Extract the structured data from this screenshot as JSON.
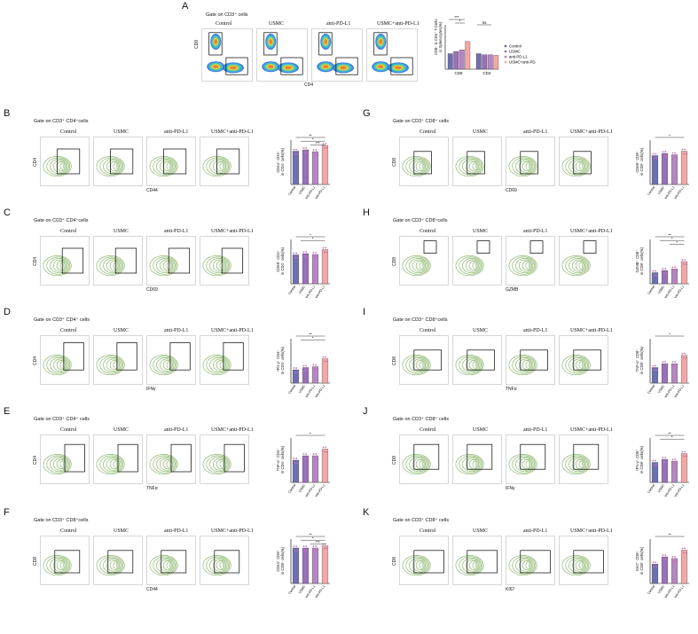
{
  "colors": {
    "control": "#6f6fb0",
    "usmc": "#9a70b8",
    "anti_pd_l1": "#b686c4",
    "combo": "#f2a8a8",
    "contour": "#8fb872",
    "gate_line": "#000000",
    "dot": "#c46fb7"
  },
  "panel_A": {
    "letter": "A",
    "gate": "Gate on CD3⁺ cells",
    "conditions": [
      "Control",
      "USMC",
      "anti-PD-L1",
      "USMC+anti-PD-L1"
    ],
    "y_axis": "CD8",
    "x_axis": "CD4",
    "chart_data": {
      "type": "bar",
      "categories": [
        "CD8",
        "CD4"
      ],
      "series": [
        {
          "name": "Control",
          "values": [
            28,
            28
          ]
        },
        {
          "name": "USMC",
          "values": [
            32,
            26
          ]
        },
        {
          "name": "anti-PD-L1",
          "values": [
            35,
            26
          ]
        },
        {
          "name": "USMC+anti-PD-L1",
          "values": [
            50,
            25
          ]
        }
      ],
      "ylabel": "CD8⁺ & CD4⁺ T-Cells\nin Splenocytes(%)",
      "ylim": [
        0,
        80
      ],
      "significance": [
        "***",
        "*",
        "ns"
      ],
      "legend_position": "right"
    }
  },
  "panels": [
    {
      "letter": "B",
      "gate": "Gate on CD3⁺ CD4⁺cells",
      "y_axis": "CD4",
      "x_axis": "CD44",
      "conditions": [
        "Control",
        "USMC",
        "anti-PD-L1",
        "USMC+anti-PD-L1"
      ],
      "chart_data": {
        "type": "bar",
        "categories": [
          "Control",
          "USMC",
          "anti-PD-L1",
          "USMC+anti-PD-L1"
        ],
        "values": [
          75,
          78,
          74,
          88
        ],
        "ylabel": "CD44⁺ CD4⁺\nin CD4⁺ cells(%)",
        "ylim": [
          0,
          100
        ],
        "significance": [
          "**",
          "*",
          "***"
        ]
      }
    },
    {
      "letter": "C",
      "gate": "Gate on CD3⁺ CD4⁺cells",
      "y_axis": "CD4",
      "x_axis": "CD69",
      "conditions": [
        "Control",
        "USMC",
        "anti-PD-L1",
        "USMC+anti-PD-L1"
      ],
      "chart_data": {
        "type": "bar",
        "categories": [
          "Control",
          "USMC",
          "anti-PD-L1",
          "USMC+anti-PD-L1"
        ],
        "values": [
          65,
          68,
          66,
          77
        ],
        "ylabel": "CD69⁺ CD4⁺\nin CD4⁺ cells(%)",
        "ylim": [
          0,
          100
        ],
        "significance": [
          "*",
          "*"
        ]
      }
    },
    {
      "letter": "D",
      "gate": "Gate on CD3⁺ CD4⁺ cells",
      "y_axis": "CD4",
      "x_axis": "IFNγ",
      "conditions": [
        "Control",
        "USMC",
        "anti-PD-L1",
        "USMC+anti-PD-L1"
      ],
      "chart_data": {
        "type": "bar",
        "categories": [
          "Control",
          "USMC",
          "anti-PD-L1",
          "USMC+anti-PD-L1"
        ],
        "values": [
          30,
          35,
          37,
          55
        ],
        "ylabel": "IFN-γ⁺ CD4⁺\nin CD4⁺ cells(%)",
        "ylim": [
          0,
          100
        ],
        "significance": [
          "**",
          "*"
        ]
      }
    },
    {
      "letter": "E",
      "gate": "Gate on CD3⁺ CD4⁺ cells",
      "y_axis": "CD4",
      "x_axis": "TNFα",
      "conditions": [
        "Control",
        "USMC",
        "anti-PD-L1",
        "USMC+anti-PD-L1"
      ],
      "chart_data": {
        "type": "bar",
        "categories": [
          "Control",
          "USMC",
          "anti-PD-L1",
          "USMC+anti-PD-L1"
        ],
        "values": [
          40,
          48,
          48,
          60
        ],
        "ylabel": "TNF-α⁺ CD4⁺\nin CD4⁺ cells(%)",
        "ylim": [
          0,
          80
        ],
        "significance": [
          "*"
        ]
      }
    },
    {
      "letter": "F",
      "gate": "Gate on CD3⁺ CD8⁺cells",
      "y_axis": "CD8",
      "x_axis": "CD44",
      "conditions": [
        "Control",
        "USMC",
        "anti-PD-L1",
        "USMC+anti-PD-L1"
      ],
      "chart_data": {
        "type": "bar",
        "categories": [
          "Control",
          "USMC",
          "anti-PD-L1",
          "USMC+anti-PD-L1"
        ],
        "values": [
          80,
          80,
          80,
          85
        ],
        "ylabel": "CD44⁺ CD8⁺\nin CD8⁺ cells(%)",
        "ylim": [
          0,
          100
        ],
        "significance": [
          "**",
          "*",
          "***"
        ]
      }
    },
    {
      "letter": "G",
      "gate": "Gate on CD3⁺ CD8⁺ cells",
      "y_axis": "CD8",
      "x_axis": "CD69",
      "conditions": [
        "Control",
        "USMC",
        "anti-PD-L1",
        "USMC+anti-PD-L1"
      ],
      "chart_data": {
        "type": "bar",
        "categories": [
          "Control",
          "USMC",
          "anti-PD-L1",
          "USMC+anti-PD-L1"
        ],
        "values": [
          65,
          70,
          67,
          75
        ],
        "ylabel": "CD69⁺ CD8⁺\nin CD8⁺ cells(%)",
        "ylim": [
          0,
          100
        ],
        "significance": [
          "*"
        ]
      }
    },
    {
      "letter": "H",
      "gate": "Gate on CD3⁺ CD8⁺cells",
      "y_axis": "CD8",
      "x_axis": "GZMB",
      "conditions": [
        "Control",
        "USMC",
        "anti-PD-L1",
        "USMC+anti-PD-L1"
      ],
      "chart_data": {
        "type": "bar",
        "categories": [
          "Control",
          "USMC",
          "anti-PD-L1",
          "USMC+anti-PD-L1"
        ],
        "values": [
          15,
          18,
          20,
          30
        ],
        "ylabel": "GZMB⁺ CD8⁺\nin CD8⁺ cells(%)",
        "ylim": [
          0,
          60
        ],
        "significance": [
          "**",
          "*",
          "*"
        ]
      }
    },
    {
      "letter": "I",
      "gate": "Gate on CD3⁺ CD8⁺cells",
      "y_axis": "CD8",
      "x_axis": "TNFα",
      "conditions": [
        "Control",
        "USMC",
        "anti-PD-L1",
        "USMC+anti-PD-L1"
      ],
      "chart_data": {
        "type": "bar",
        "categories": [
          "Control",
          "USMC",
          "anti-PD-L1",
          "USMC+anti-PD-L1"
        ],
        "values": [
          28,
          35,
          35,
          50
        ],
        "ylabel": "TNF-α⁺ CD8⁺\nin CD8⁺ cells(%)",
        "ylim": [
          0,
          80
        ],
        "significance": [
          "*"
        ]
      }
    },
    {
      "letter": "J",
      "gate": "Gate on CD3⁺ CD8⁺ cells",
      "y_axis": "CD8",
      "x_axis": "IFNγ",
      "conditions": [
        "Control",
        "USMC",
        "anti-PD-L1",
        "USMC+anti-PD-L1"
      ],
      "chart_data": {
        "type": "bar",
        "categories": [
          "Control",
          "USMC",
          "anti-PD-L1",
          "USMC+anti-PD-L1"
        ],
        "values": [
          45,
          52,
          48,
          65
        ],
        "ylabel": "IFN-γ⁺ CD8⁺\nin CD8⁺ cells(%)",
        "ylim": [
          0,
          100
        ],
        "significance": [
          "**",
          "*"
        ]
      }
    },
    {
      "letter": "K",
      "gate": "Gate on CD3⁺ CD8⁺ cells",
      "y_axis": "CD8",
      "x_axis": "KI67",
      "conditions": [
        "Control",
        "USMC",
        "anti-PD-L1",
        "USMC+anti-PD-L1"
      ],
      "chart_data": {
        "type": "bar",
        "categories": [
          "Control",
          "USMC",
          "anti-PD-L1",
          "USMC+anti-PD-L1"
        ],
        "values": [
          35,
          48,
          45,
          60
        ],
        "ylabel": "KI67⁺ CD8⁺\nin CD8⁺ cells(%)",
        "ylim": [
          0,
          80
        ],
        "significance": [
          "**"
        ]
      }
    }
  ]
}
